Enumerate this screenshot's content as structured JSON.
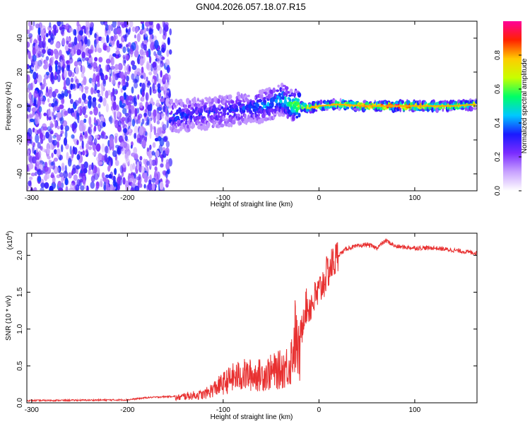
{
  "title": "GN04.2026.057.18.07.R15",
  "chart_data": [
    {
      "type": "heatmap",
      "xlabel": "Height of straight line (km)",
      "ylabel": "Frequency (Hz)",
      "xlim": [
        -305,
        165
      ],
      "ylim": [
        -50,
        50
      ],
      "xticks": [
        -300,
        -200,
        -100,
        0,
        100
      ],
      "yticks": [
        -40,
        -20,
        0,
        20,
        40
      ],
      "colorbar": {
        "label": "Normalized spectral amplitude",
        "range": [
          0,
          1
        ],
        "ticks": [
          0.0,
          0.2,
          0.4,
          0.6,
          0.8
        ],
        "colors": [
          "#ffffff",
          "#c9a3ff",
          "#7b2cff",
          "#1a1aff",
          "#00c8ff",
          "#00ff66",
          "#c8ff00",
          "#ffcc00",
          "#ff2200",
          "#ff0099"
        ]
      },
      "ridge": {
        "x": [
          -150,
          -130,
          -110,
          -90,
          -70,
          -50,
          -40,
          -30,
          -20,
          -10,
          0,
          20,
          50,
          80,
          100,
          120,
          140,
          165
        ],
        "y": [
          -6,
          -5,
          -4,
          -2,
          -1,
          1,
          4,
          1,
          0,
          -1,
          0,
          1,
          0,
          0,
          0,
          0,
          0,
          1
        ],
        "amplitude": [
          0.35,
          0.3,
          0.3,
          0.32,
          0.35,
          0.4,
          0.45,
          0.55,
          0.7,
          0.8,
          0.75,
          0.7,
          0.85,
          0.95,
          0.9,
          0.75,
          0.7,
          0.7
        ]
      }
    },
    {
      "type": "line",
      "xlabel": "Height of straight line (km)",
      "ylabel": "SNR (10 * v/v)",
      "yscale_label": "(x10",
      "yscale_exp": "4",
      "scale_factor": 10000,
      "xlim": [
        -305,
        165
      ],
      "ylim": [
        0,
        2.3
      ],
      "xticks": [
        -300,
        -200,
        -100,
        0,
        100
      ],
      "yticks": [
        0.0,
        0.5,
        1.0,
        1.5,
        2.0
      ],
      "series": [
        {
          "color": "#e83030",
          "x": [
            -305,
            -200,
            -180,
            -150,
            -140,
            -120,
            -100,
            -90,
            -80,
            -60,
            -50,
            -40,
            -30,
            -25,
            -20,
            -15,
            -10,
            0,
            10,
            20,
            30,
            40,
            50,
            60,
            70,
            80,
            100,
            120,
            140,
            165
          ],
          "y": [
            0.02,
            0.03,
            0.06,
            0.08,
            0.12,
            0.15,
            0.35,
            0.45,
            0.5,
            0.5,
            0.55,
            0.6,
            0.7,
            1.2,
            0.8,
            1.3,
            1.3,
            1.5,
            1.8,
            2.0,
            2.1,
            2.12,
            2.15,
            2.1,
            2.2,
            2.12,
            2.1,
            2.1,
            2.07,
            2.03
          ]
        }
      ]
    }
  ]
}
